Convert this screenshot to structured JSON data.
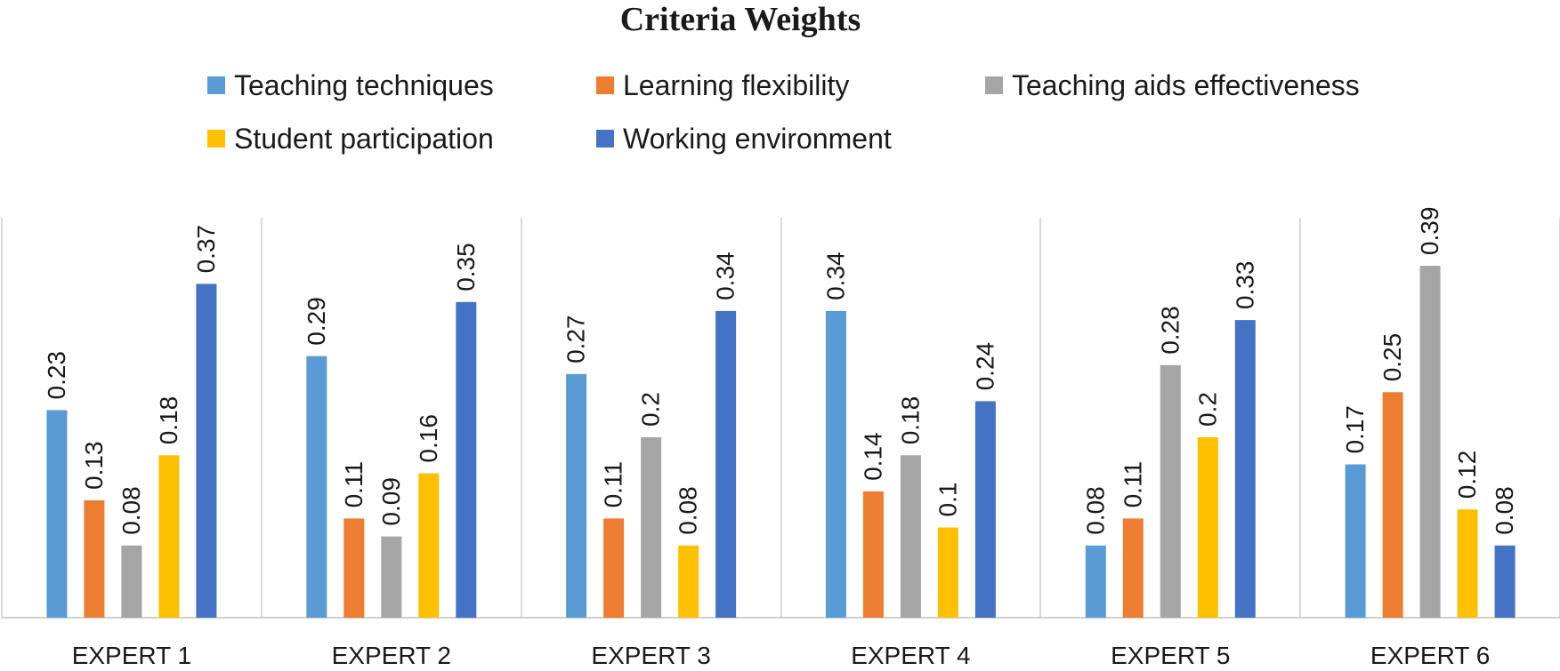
{
  "chart_data": {
    "type": "bar",
    "title": "Criteria Weights",
    "xlabel": "",
    "ylabel": "",
    "ylim": [
      0,
      0.45
    ],
    "legend_position": "top",
    "grid": false,
    "categories": [
      "EXPERT 1",
      "EXPERT 2",
      "EXPERT 3",
      "EXPERT 4",
      "EXPERT 5",
      "EXPERT 6"
    ],
    "series": [
      {
        "name": "Teaching techniques",
        "color": "#5B9BD5",
        "values": [
          0.23,
          0.29,
          0.27,
          0.34,
          0.08,
          0.17
        ]
      },
      {
        "name": "Learning flexibility",
        "color": "#ED7D31",
        "values": [
          0.13,
          0.11,
          0.11,
          0.14,
          0.11,
          0.25
        ]
      },
      {
        "name": "Teaching aids effectiveness",
        "color": "#A5A5A5",
        "values": [
          0.08,
          0.09,
          0.2,
          0.18,
          0.28,
          0.39
        ]
      },
      {
        "name": "Student participation",
        "color": "#FFC000",
        "values": [
          0.18,
          0.16,
          0.08,
          0.1,
          0.2,
          0.12
        ]
      },
      {
        "name": "Working environment",
        "color": "#4472C4",
        "values": [
          0.37,
          0.35,
          0.34,
          0.24,
          0.33,
          0.08
        ]
      }
    ],
    "data_labels": [
      [
        "0.23",
        "0.29",
        "0.27",
        "0.34",
        "0.08",
        "0.17"
      ],
      [
        "0.13",
        "0.11",
        "0.11",
        "0.14",
        "0.11",
        "0.25"
      ],
      [
        "0.08",
        "0.09",
        "0.2",
        "0.18",
        "0.28",
        "0.39"
      ],
      [
        "0.18",
        "0.16",
        "0.08",
        "0.1",
        "0.2",
        "0.12"
      ],
      [
        "0.37",
        "0.35",
        "0.34",
        "0.24",
        "0.33",
        "0.08"
      ]
    ]
  }
}
